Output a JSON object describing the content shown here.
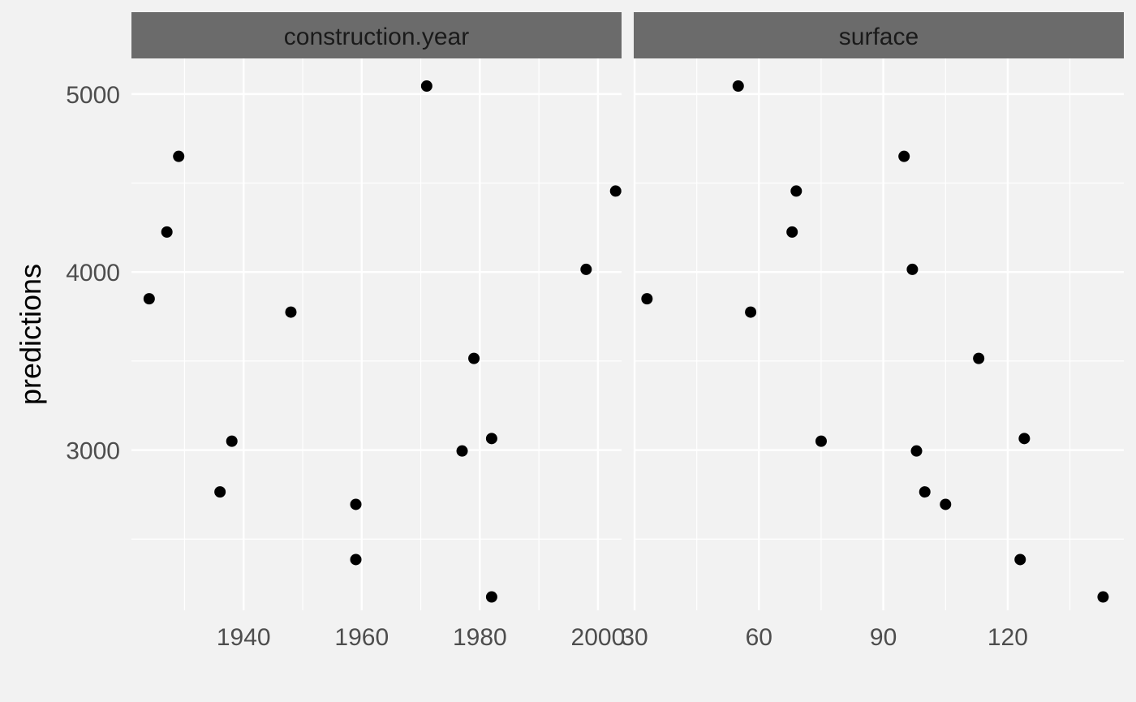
{
  "chart_data": {
    "type": "scatter",
    "ylabel": "predictions",
    "ylim": [
      2100,
      5200
    ],
    "y_ticks": [
      3000,
      4000,
      5000
    ],
    "y_tick_labels": [
      "3000",
      "4000",
      "5000"
    ],
    "grid": true,
    "panels": [
      {
        "name": "construction.year",
        "xlim": [
          1921,
          2004
        ],
        "x_ticks": [
          1940,
          1960,
          1980,
          2000
        ],
        "x_tick_labels": [
          "1940",
          "1960",
          "1980",
          "2000"
        ],
        "points": [
          {
            "x": 1924,
            "y": 3850
          },
          {
            "x": 1927,
            "y": 4225
          },
          {
            "x": 1929,
            "y": 4650
          },
          {
            "x": 1936,
            "y": 2765
          },
          {
            "x": 1938,
            "y": 3050
          },
          {
            "x": 1948,
            "y": 3775
          },
          {
            "x": 1959,
            "y": 2695
          },
          {
            "x": 1959,
            "y": 2385
          },
          {
            "x": 1971,
            "y": 5045
          },
          {
            "x": 1977,
            "y": 2995
          },
          {
            "x": 1979,
            "y": 3515
          },
          {
            "x": 1982,
            "y": 3065
          },
          {
            "x": 1982,
            "y": 2175
          },
          {
            "x": 1998,
            "y": 4015
          },
          {
            "x": 2003,
            "y": 4455
          }
        ]
      },
      {
        "name": "surface",
        "xlim": [
          29.8,
          148
        ],
        "x_ticks": [
          30,
          60,
          90,
          120
        ],
        "x_tick_labels": [
          "30",
          "60",
          "90",
          "120"
        ],
        "points": [
          {
            "x": 33,
            "y": 3850
          },
          {
            "x": 55,
            "y": 5045
          },
          {
            "x": 58,
            "y": 3775
          },
          {
            "x": 68,
            "y": 4225
          },
          {
            "x": 69,
            "y": 4455
          },
          {
            "x": 75,
            "y": 3050
          },
          {
            "x": 95,
            "y": 4650
          },
          {
            "x": 97,
            "y": 4015
          },
          {
            "x": 98,
            "y": 2995
          },
          {
            "x": 100,
            "y": 2765
          },
          {
            "x": 105,
            "y": 2695
          },
          {
            "x": 113,
            "y": 3515
          },
          {
            "x": 123,
            "y": 2385
          },
          {
            "x": 124,
            "y": 3065
          },
          {
            "x": 143,
            "y": 2175
          }
        ]
      }
    ]
  }
}
